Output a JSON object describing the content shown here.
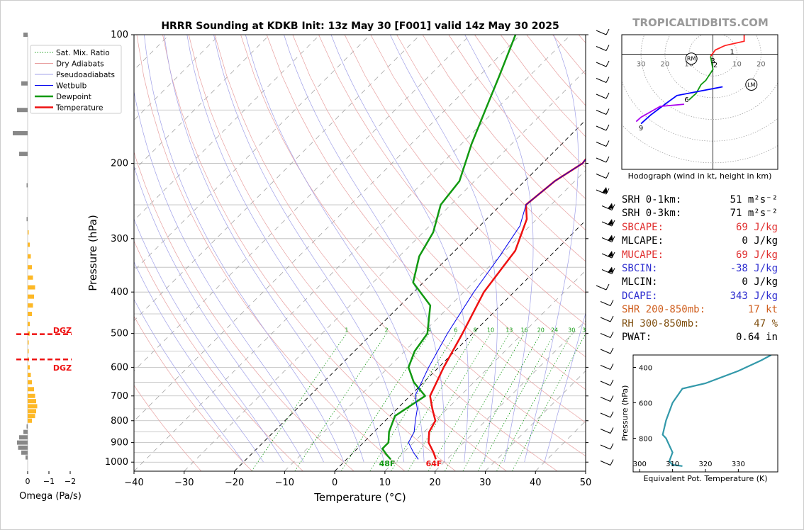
{
  "header": {
    "title": "HRRR Sounding at KDKB Init: 13z May 30 [F001] valid 14z May 30 2025",
    "watermark": "TROPICALTIDBITS.COM"
  },
  "skewt": {
    "xlabel": "Temperature (°C)",
    "ylabel": "Pressure (hPa)",
    "x_ticks": [
      "−40",
      "−30",
      "−20",
      "−10",
      "0",
      "10",
      "20",
      "30",
      "40",
      "50"
    ],
    "y_ticks": [
      "100",
      "200",
      "300",
      "400",
      "500",
      "600",
      "700",
      "800",
      "900",
      "1000"
    ],
    "mix_ratio_labels": [
      "1",
      "2",
      "4",
      "6",
      "8",
      "10",
      "13",
      "16",
      "20",
      "24",
      "30",
      "36"
    ],
    "dewpoint_surface_label": "48F",
    "temp_surface_label": "64F",
    "legend": [
      "Sat. Mix. Ratio",
      "Dry Adiabats",
      "Pseudoadiabats",
      "Wetbulb",
      "Dewpoint",
      "Temperature"
    ]
  },
  "omega": {
    "xlabel": "Omega (Pa/s)",
    "x_ticks": [
      "0",
      "−1",
      "−2"
    ],
    "dgz_label_top": "DGZ",
    "dgz_label_bottom": "DGZ"
  },
  "hodograph": {
    "caption": "Hodograph (wind in kt, height in km)",
    "ring_labels": [
      "30",
      "20",
      "10",
      "10",
      "20"
    ],
    "height_labels": [
      "1",
      "2",
      "3",
      "6",
      "9"
    ],
    "storm_motion": [
      "RM",
      "LM"
    ]
  },
  "params": [
    {
      "label": "SRH 0-1km:",
      "value": "51 m²s⁻²",
      "color": "#000000"
    },
    {
      "label": "SRH 0-3km:",
      "value": "71 m²s⁻²",
      "color": "#000000"
    },
    {
      "label": "SBCAPE:",
      "value": "69 J/kg",
      "color": "#e03030"
    },
    {
      "label": "MLCAPE:",
      "value": "0 J/kg",
      "color": "#000000"
    },
    {
      "label": "MUCAPE:",
      "value": "69 J/kg",
      "color": "#e03030"
    },
    {
      "label": "SBCIN:",
      "value": "-38 J/kg",
      "color": "#3030d0"
    },
    {
      "label": "MLCIN:",
      "value": "0 J/kg",
      "color": "#000000"
    },
    {
      "label": "DCAPE:",
      "value": "343 J/kg",
      "color": "#3030d0"
    },
    {
      "label": "SHR 200-850mb:",
      "value": "17 kt",
      "color": "#d06020"
    },
    {
      "label": "RH 300-850mb:",
      "value": "47 %",
      "color": "#805010"
    },
    {
      "label": "PWAT:",
      "value": "0.64 in",
      "color": "#000000"
    }
  ],
  "theta_e": {
    "xlabel": "Equivalent Pot. Temperature (K)",
    "ylabel": "Pressure (hPa)",
    "x_ticks": [
      "300",
      "310",
      "320",
      "330"
    ],
    "y_ticks": [
      "400",
      "600",
      "800"
    ]
  },
  "chart_data": [
    {
      "type": "line",
      "title": "HRRR Sounding at KDKB Init: 13z May 30 [F001] valid 14z May 30 2025",
      "xlabel": "Temperature (°C)",
      "ylabel": "Pressure (hPa)",
      "xlim": [
        -40,
        50
      ],
      "ylim": [
        1050,
        100
      ],
      "y_scale": "log",
      "series": [
        {
          "name": "Temperature",
          "color": "#ee1111",
          "points": [
            [
              17.8,
              985
            ],
            [
              16,
              950
            ],
            [
              13,
              900
            ],
            [
              11,
              850
            ],
            [
              10,
              800
            ],
            [
              7,
              750
            ],
            [
              4,
              700
            ],
            [
              1,
              600
            ],
            [
              -2,
              500
            ],
            [
              -6,
              400
            ],
            [
              -8,
              320
            ],
            [
              -12,
              270
            ],
            [
              -15,
              250
            ],
            [
              -14,
              220
            ],
            [
              -12,
              200
            ],
            [
              -14,
              160
            ],
            [
              -16,
              130
            ],
            [
              -19,
              100
            ]
          ]
        },
        {
          "name": "Dewpoint",
          "color": "#119911",
          "points": [
            [
              8.8,
              985
            ],
            [
              7,
              960
            ],
            [
              5,
              930
            ],
            [
              5,
              900
            ],
            [
              3,
              850
            ],
            [
              1,
              780
            ],
            [
              3,
              700
            ],
            [
              -2,
              650
            ],
            [
              -6,
              600
            ],
            [
              -8,
              550
            ],
            [
              -9,
              500
            ],
            [
              -14,
              430
            ],
            [
              -22,
              380
            ],
            [
              -26,
              330
            ],
            [
              -28,
              290
            ],
            [
              -32,
              250
            ],
            [
              -33,
              220
            ],
            [
              -38,
              180
            ],
            [
              -42,
              150
            ],
            [
              -46,
              125
            ],
            [
              -51,
              100
            ]
          ]
        },
        {
          "name": "Wetbulb",
          "color": "#0000ee",
          "points": [
            [
              14.3,
              985
            ],
            [
              12,
              950
            ],
            [
              9,
              900
            ],
            [
              8,
              850
            ],
            [
              6,
              800
            ],
            [
              4,
              750
            ],
            [
              1,
              700
            ],
            [
              -2,
              600
            ],
            [
              -5,
              500
            ],
            [
              -8,
              400
            ],
            [
              -10,
              330
            ],
            [
              -12,
              280
            ],
            [
              -15,
              250
            ],
            [
              -14,
              220
            ],
            [
              -12,
              200
            ],
            [
              -14,
              160
            ],
            [
              -16,
              130
            ],
            [
              -19,
              100
            ]
          ]
        }
      ],
      "legend_position": "top-left"
    },
    {
      "type": "bar",
      "xlabel": "Omega (Pa/s)",
      "xlim": [
        0.3,
        -2
      ],
      "y_scale": "log",
      "dgz_hPa": [
        500,
        575
      ],
      "bars": [
        [
          100,
          -0.2
        ],
        [
          130,
          -0.3
        ],
        [
          150,
          -0.5
        ],
        [
          170,
          -0.7
        ],
        [
          190,
          -0.4
        ],
        [
          225,
          -0.05
        ],
        [
          270,
          -0.05
        ],
        [
          290,
          0.05
        ],
        [
          310,
          0.1
        ],
        [
          330,
          0.15
        ],
        [
          350,
          0.2
        ],
        [
          370,
          0.25
        ],
        [
          390,
          0.35
        ],
        [
          410,
          0.3
        ],
        [
          430,
          0.25
        ],
        [
          450,
          0.2
        ],
        [
          475,
          0.1
        ],
        [
          500,
          0.1
        ],
        [
          525,
          0.05
        ],
        [
          550,
          0.05
        ],
        [
          575,
          0.05
        ],
        [
          600,
          0.1
        ],
        [
          625,
          0.15
        ],
        [
          650,
          0.2
        ],
        [
          675,
          0.3
        ],
        [
          700,
          0.35
        ],
        [
          720,
          0.4
        ],
        [
          740,
          0.45
        ],
        [
          760,
          0.4
        ],
        [
          780,
          0.35
        ],
        [
          800,
          0.2
        ],
        [
          825,
          -0.05
        ],
        [
          850,
          -0.2
        ],
        [
          875,
          -0.4
        ],
        [
          900,
          -0.5
        ],
        [
          925,
          -0.45
        ],
        [
          950,
          -0.3
        ],
        [
          975,
          -0.1
        ]
      ]
    },
    {
      "type": "line",
      "title": "Hodograph (wind in kt, height in km)",
      "xlim": [
        -38,
        27
      ],
      "ylim": [
        -45,
        17
      ],
      "grid": true,
      "series": [
        {
          "name": "0-1 km",
          "color": "#ff2222",
          "points": [
            [
              -1,
              7
            ],
            [
              1,
              10
            ],
            [
              5,
              12
            ],
            [
              9,
              13
            ],
            [
              13,
              14
            ],
            [
              13,
              17
            ]
          ]
        },
        {
          "name": "1-3 km",
          "color": "#119911",
          "points": [
            [
              -1,
              7
            ],
            [
              0,
              1
            ],
            [
              -3,
              -4
            ],
            [
              -5,
              -6
            ],
            [
              -7,
              -10
            ],
            [
              -10,
              -13
            ]
          ]
        },
        {
          "name": "3-6 km",
          "color": "#0000ff",
          "points": [
            [
              4,
              -7
            ],
            [
              -15,
              -11
            ],
            [
              -20,
              -15
            ],
            [
              -26,
              -20
            ],
            [
              -30,
              -24
            ]
          ]
        },
        {
          "name": "6-9 km",
          "color": "#aa00ee",
          "points": [
            [
              -12,
              -15
            ],
            [
              -22,
              -16
            ],
            [
              -30,
              -21
            ],
            [
              -32,
              -23
            ]
          ]
        }
      ],
      "markers": [
        {
          "label": "RM",
          "x": -9,
          "y": 6
        },
        {
          "label": "LM",
          "x": 16,
          "y": -6
        }
      ]
    },
    {
      "type": "line",
      "xlabel": "Equivalent Pot. Temperature (K)",
      "ylabel": "Pressure (hPa)",
      "xlim": [
        298,
        342
      ],
      "ylim": [
        990,
        330
      ],
      "series": [
        {
          "name": "Theta-E",
          "color": "#3399aa",
          "points": [
            [
              313,
              957
            ],
            [
              310,
              950
            ],
            [
              309,
              930
            ],
            [
              310,
              880
            ],
            [
              308,
              800
            ],
            [
              307,
              780
            ],
            [
              308,
              700
            ],
            [
              310,
              600
            ],
            [
              313,
              520
            ],
            [
              320,
              490
            ],
            [
              330,
              420
            ],
            [
              337,
              360
            ],
            [
              340,
              330
            ]
          ]
        }
      ]
    }
  ]
}
